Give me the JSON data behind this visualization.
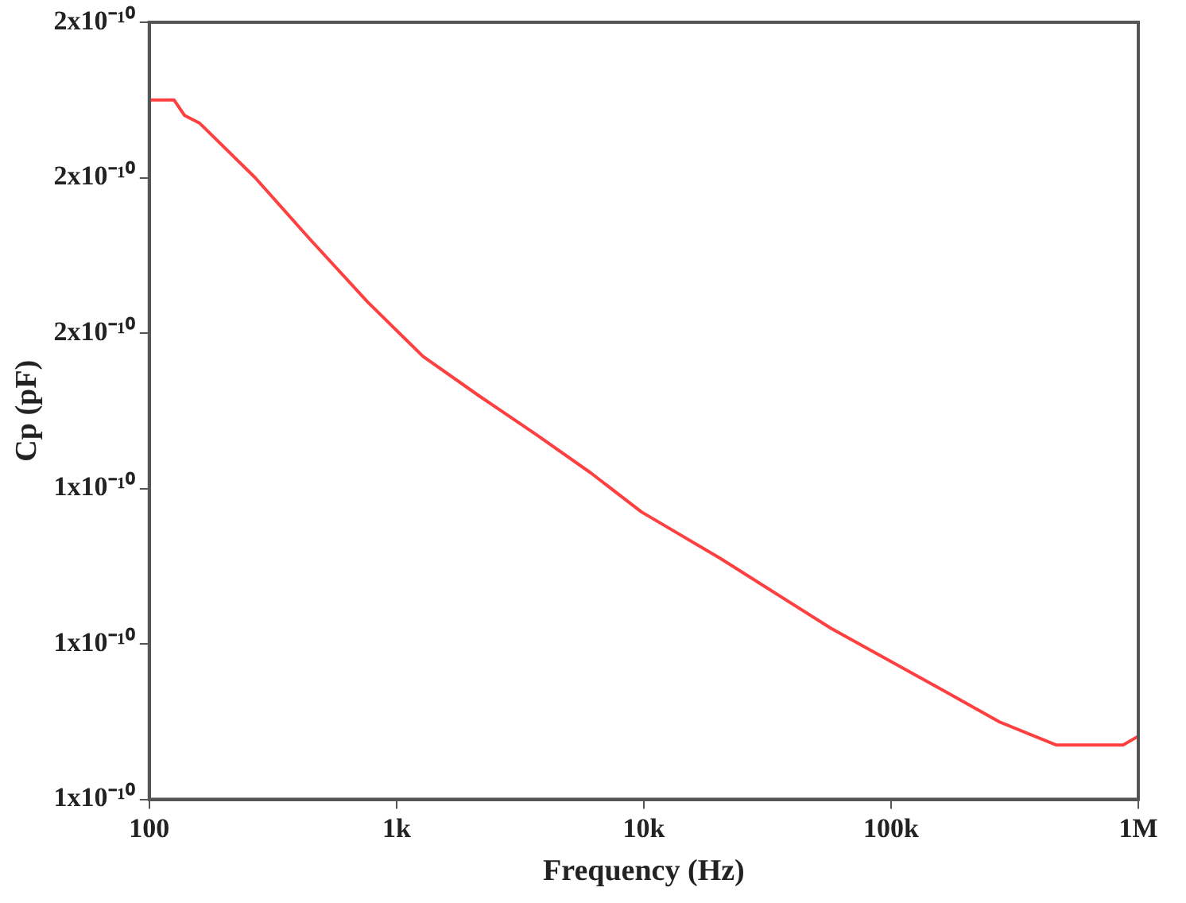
{
  "chart_data": {
    "type": "line",
    "xlabel": "Frequency (Hz)",
    "ylabel": "Cp (pF)",
    "log": "x",
    "grid": false,
    "legend": false,
    "marker": "none",
    "line_style": "solid",
    "x": [
      100,
      126,
      139,
      160,
      268,
      449,
      764,
      1280,
      2140,
      3650,
      6110,
      9770,
      20400,
      57200,
      163000,
      273000,
      465000,
      665000,
      868000,
      984000
    ],
    "series": [
      {
        "color": "#ff4040",
        "values": [
          1.9e-10,
          1.9e-10,
          1.88e-10,
          1.87e-10,
          1.8e-10,
          1.72e-10,
          1.64e-10,
          1.57e-10,
          1.52e-10,
          1.47e-10,
          1.42e-10,
          1.37e-10,
          1.31e-10,
          1.22e-10,
          1.14e-10,
          1.1e-10,
          1.07e-10,
          1.07e-10,
          1.07e-10,
          1.08e-10
        ]
      }
    ],
    "xlim": [
      100,
      1000000
    ],
    "xticks": [
      100,
      {
        "value": 1000,
        "label": "1k"
      },
      {
        "value": 10000,
        "label": "10k"
      },
      {
        "value": 100000,
        "label": "100k"
      },
      {
        "value": 1000000,
        "label": "1M"
      }
    ],
    "ylim": [
      1e-10,
      2e-10
    ],
    "yticks": [
      {
        "value": 1e-10,
        "label": "1x10⁻¹⁰"
      },
      {
        "value": 1.2e-10,
        "label": "1x10⁻¹⁰"
      },
      {
        "value": 1.4e-10,
        "label": "1x10⁻¹⁰"
      },
      {
        "value": 1.6e-10,
        "label": "2x10⁻¹⁰"
      },
      {
        "value": 1.8e-10,
        "label": "2x10⁻¹⁰"
      },
      {
        "value": 2e-10,
        "label": "2x10⁻¹⁰"
      }
    ]
  }
}
